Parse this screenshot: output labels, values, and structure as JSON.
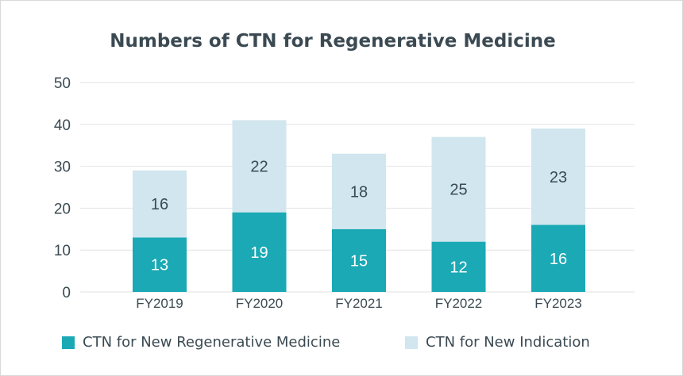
{
  "chart_data": {
    "type": "bar",
    "stacked": true,
    "title": "Numbers of CTN for Regenerative Medicine",
    "categories": [
      "FY2019",
      "FY2020",
      "FY2021",
      "FY2022",
      "FY2023"
    ],
    "series": [
      {
        "name": "CTN for New Regenerative Medicine",
        "values": [
          13,
          19,
          15,
          12,
          16
        ],
        "color": "#1aa9b5",
        "label_color": "#ffffff"
      },
      {
        "name": "CTN for New Indication",
        "values": [
          16,
          22,
          18,
          25,
          23
        ],
        "color": "#d1e6ee",
        "label_color": "#3b4a52"
      }
    ],
    "ylim": [
      0,
      50
    ],
    "yticks": [
      0,
      10,
      20,
      30,
      40,
      50
    ],
    "grid": true,
    "legend_position": "bottom"
  }
}
